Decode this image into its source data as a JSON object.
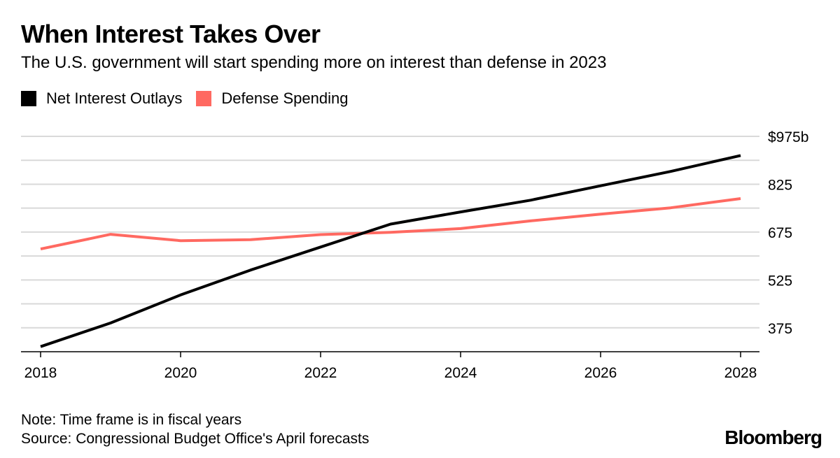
{
  "header": {
    "title": "When Interest Takes Over",
    "subtitle": "The U.S. government will start spending more on interest than defense in 2023"
  },
  "legend": {
    "items": [
      {
        "label": "Net Interest Outlays",
        "color": "#000000"
      },
      {
        "label": "Defense Spending",
        "color": "#ff6961"
      }
    ]
  },
  "footer": {
    "note": "Note: Time frame is in fiscal years",
    "source": "Source: Congressional Budget Office's April forecasts",
    "brand": "Bloomberg"
  },
  "chart_data": {
    "type": "line",
    "x": [
      2018,
      2019,
      2020,
      2021,
      2022,
      2023,
      2024,
      2025,
      2026,
      2027,
      2028
    ],
    "series": [
      {
        "name": "Net Interest Outlays",
        "color": "#000000",
        "values": [
          316,
          390,
          478,
          556,
          628,
          700,
          738,
          775,
          820,
          865,
          915
        ]
      },
      {
        "name": "Defense Spending",
        "color": "#ff6961",
        "values": [
          622,
          668,
          648,
          651,
          667,
          674,
          686,
          710,
          731,
          751,
          780
        ]
      }
    ],
    "xticks": [
      2018,
      2020,
      2022,
      2024,
      2026,
      2028
    ],
    "xtick_labels": [
      "2018",
      "2020",
      "2022",
      "2024",
      "2026",
      "2028"
    ],
    "yticks": [
      375,
      525,
      675,
      825,
      975
    ],
    "ytick_labels": [
      "375",
      "525",
      "675",
      "825",
      "$975b"
    ],
    "ylim": [
      300,
      975
    ],
    "xlim": [
      2018,
      2028
    ],
    "grid": true,
    "grid_step": 75,
    "legend_position": "top-left"
  }
}
